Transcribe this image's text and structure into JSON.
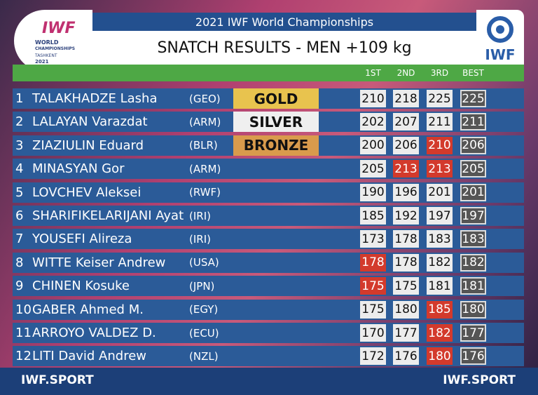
{
  "header": {
    "event": "2021 IWF World Championships",
    "title": "SNATCH RESULTS - MEN +109 kg",
    "left_logo": {
      "mark": "IWF",
      "line1": "WORLD",
      "line2": "CHAMPIONSHIPS",
      "city": "TASHKENT",
      "year": "2021"
    },
    "right_logo": "IWF"
  },
  "table": {
    "columns": [
      "1ST",
      "2ND",
      "3RD",
      "BEST"
    ],
    "rows": [
      {
        "rank": "1",
        "name": "TALAKHADZE Lasha",
        "nation": "(GEO)",
        "medal": {
          "label": "GOLD",
          "color": "#e8c34e"
        },
        "attempts": [
          {
            "value": 210,
            "made": true
          },
          {
            "value": 218,
            "made": true
          },
          {
            "value": 225,
            "made": true
          }
        ],
        "best": 225
      },
      {
        "rank": "2",
        "name": "LALAYAN Varazdat",
        "nation": "(ARM)",
        "medal": {
          "label": "SILVER",
          "color": "#efefef"
        },
        "attempts": [
          {
            "value": 202,
            "made": true
          },
          {
            "value": 207,
            "made": true
          },
          {
            "value": 211,
            "made": true
          }
        ],
        "best": 211
      },
      {
        "rank": "3",
        "name": "ZIAZIULIN Eduard",
        "nation": "(BLR)",
        "medal": {
          "label": "BRONZE",
          "color": "#d99b4c"
        },
        "attempts": [
          {
            "value": 200,
            "made": true
          },
          {
            "value": 206,
            "made": true
          },
          {
            "value": 210,
            "made": false
          }
        ],
        "best": 206
      },
      {
        "rank": "4",
        "name": "MINASYAN Gor",
        "nation": "(ARM)",
        "attempts": [
          {
            "value": 205,
            "made": true
          },
          {
            "value": 213,
            "made": false
          },
          {
            "value": 213,
            "made": false
          }
        ],
        "best": 205
      },
      {
        "rank": "5",
        "name": "LOVCHEV Aleksei",
        "nation": "(RWF)",
        "attempts": [
          {
            "value": 190,
            "made": true
          },
          {
            "value": 196,
            "made": true
          },
          {
            "value": 201,
            "made": true
          }
        ],
        "best": 201
      },
      {
        "rank": "6",
        "name": "SHARIFIKELARIJANI Ayat",
        "nation": "(IRI)",
        "attempts": [
          {
            "value": 185,
            "made": true
          },
          {
            "value": 192,
            "made": true
          },
          {
            "value": 197,
            "made": true
          }
        ],
        "best": 197
      },
      {
        "rank": "7",
        "name": "YOUSEFI Alireza",
        "nation": "(IRI)",
        "attempts": [
          {
            "value": 173,
            "made": true
          },
          {
            "value": 178,
            "made": true
          },
          {
            "value": 183,
            "made": true
          }
        ],
        "best": 183
      },
      {
        "rank": "8",
        "name": "WITTE Keiser Andrew",
        "nation": "(USA)",
        "attempts": [
          {
            "value": 178,
            "made": false
          },
          {
            "value": 178,
            "made": true
          },
          {
            "value": 182,
            "made": true
          }
        ],
        "best": 182
      },
      {
        "rank": "9",
        "name": "CHINEN Kosuke",
        "nation": "(JPN)",
        "attempts": [
          {
            "value": 175,
            "made": false
          },
          {
            "value": 175,
            "made": true
          },
          {
            "value": 181,
            "made": true
          }
        ],
        "best": 181
      },
      {
        "rank": "10",
        "name": "GABER Ahmed M.",
        "nation": "(EGY)",
        "attempts": [
          {
            "value": 175,
            "made": true
          },
          {
            "value": 180,
            "made": true
          },
          {
            "value": 185,
            "made": false
          }
        ],
        "best": 180
      },
      {
        "rank": "11",
        "name": "ARROYO VALDEZ D.",
        "nation": "(ECU)",
        "attempts": [
          {
            "value": 170,
            "made": true
          },
          {
            "value": 177,
            "made": true
          },
          {
            "value": 182,
            "made": false
          }
        ],
        "best": 177
      },
      {
        "rank": "12",
        "name": "LITI David Andrew",
        "nation": "(NZL)",
        "attempts": [
          {
            "value": 172,
            "made": true
          },
          {
            "value": 176,
            "made": true
          },
          {
            "value": 180,
            "made": false
          }
        ],
        "best": 176
      }
    ]
  },
  "footer": {
    "left": "IWF.SPORT",
    "right": "IWF.SPORT"
  }
}
